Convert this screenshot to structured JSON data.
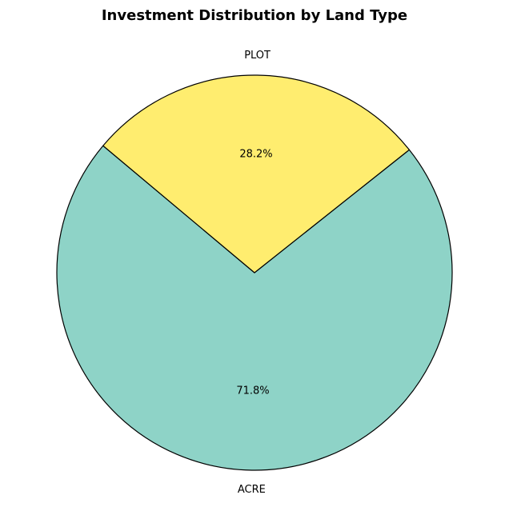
{
  "chart_data": {
    "type": "pie",
    "title": "Investment Distribution by Land Type",
    "categories": [
      "ACRE",
      "PLOT"
    ],
    "values": [
      71.8,
      28.2
    ],
    "percent_labels": [
      "71.8%",
      "28.2%"
    ],
    "colors": [
      "#8ed3c7",
      "#ffed6f"
    ],
    "edge_color": "#000000",
    "start_angle_deg": 140,
    "direction": "counterclockwise",
    "legend": "none"
  }
}
